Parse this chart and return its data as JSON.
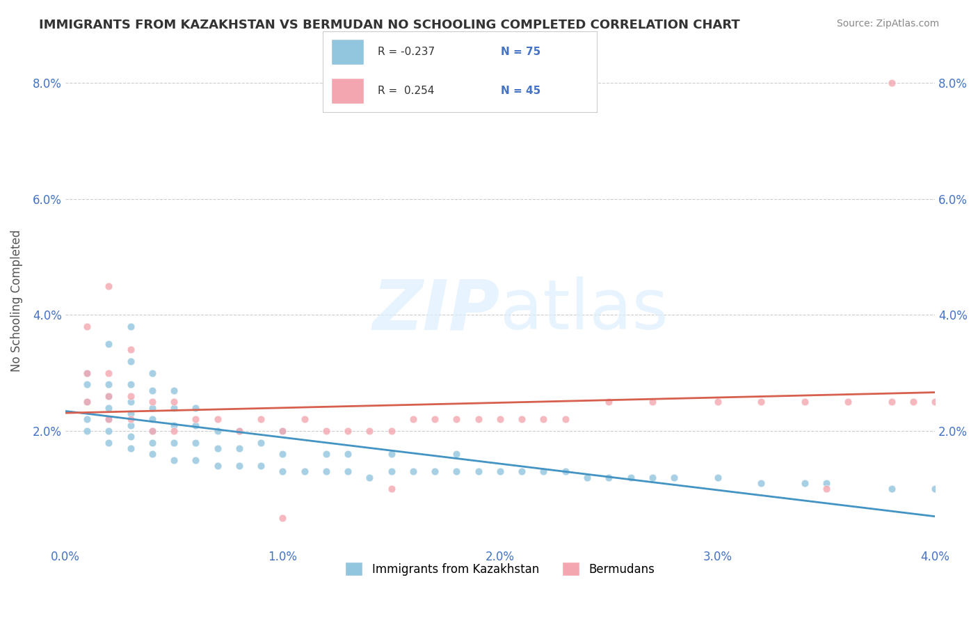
{
  "title": "IMMIGRANTS FROM KAZAKHSTAN VS BERMUDAN NO SCHOOLING COMPLETED CORRELATION CHART",
  "source": "Source: ZipAtlas.com",
  "xlabel": "",
  "ylabel": "No Schooling Completed",
  "legend_labels": [
    "Immigrants from Kazakhstan",
    "Bermudans"
  ],
  "r_kazakhstan": -0.237,
  "n_kazakhstan": 75,
  "r_bermudans": 0.254,
  "n_bermudans": 45,
  "blue_color": "#92C5DE",
  "pink_color": "#F4A6B0",
  "blue_line_color": "#4393C3",
  "pink_line_color": "#D6604D",
  "watermark": "ZIPatlas",
  "xlim": [
    0.0,
    0.04
  ],
  "ylim": [
    0.0,
    0.085
  ],
  "xtick_labels": [
    "0.0%",
    "1.0%",
    "2.0%",
    "3.0%",
    "4.0%"
  ],
  "ytick_labels": [
    "2.0%",
    "4.0%",
    "6.0%",
    "8.0%"
  ],
  "blue_scatter_x": [
    0.001,
    0.001,
    0.001,
    0.001,
    0.001,
    0.002,
    0.002,
    0.002,
    0.002,
    0.002,
    0.002,
    0.002,
    0.003,
    0.003,
    0.003,
    0.003,
    0.003,
    0.003,
    0.003,
    0.003,
    0.004,
    0.004,
    0.004,
    0.004,
    0.004,
    0.004,
    0.004,
    0.005,
    0.005,
    0.005,
    0.005,
    0.005,
    0.006,
    0.006,
    0.006,
    0.006,
    0.007,
    0.007,
    0.007,
    0.008,
    0.008,
    0.008,
    0.009,
    0.009,
    0.01,
    0.01,
    0.01,
    0.011,
    0.012,
    0.012,
    0.013,
    0.013,
    0.014,
    0.015,
    0.015,
    0.016,
    0.017,
    0.018,
    0.018,
    0.019,
    0.02,
    0.021,
    0.022,
    0.023,
    0.024,
    0.025,
    0.026,
    0.027,
    0.028,
    0.03,
    0.032,
    0.034,
    0.035,
    0.038,
    0.04
  ],
  "blue_scatter_y": [
    0.02,
    0.022,
    0.025,
    0.028,
    0.03,
    0.018,
    0.02,
    0.022,
    0.024,
    0.026,
    0.028,
    0.035,
    0.017,
    0.019,
    0.021,
    0.023,
    0.025,
    0.028,
    0.032,
    0.038,
    0.016,
    0.018,
    0.02,
    0.022,
    0.024,
    0.027,
    0.03,
    0.015,
    0.018,
    0.021,
    0.024,
    0.027,
    0.015,
    0.018,
    0.021,
    0.024,
    0.014,
    0.017,
    0.02,
    0.014,
    0.017,
    0.02,
    0.014,
    0.018,
    0.013,
    0.016,
    0.02,
    0.013,
    0.013,
    0.016,
    0.013,
    0.016,
    0.012,
    0.013,
    0.016,
    0.013,
    0.013,
    0.013,
    0.016,
    0.013,
    0.013,
    0.013,
    0.013,
    0.013,
    0.012,
    0.012,
    0.012,
    0.012,
    0.012,
    0.012,
    0.011,
    0.011,
    0.011,
    0.01,
    0.01
  ],
  "pink_scatter_x": [
    0.001,
    0.001,
    0.001,
    0.002,
    0.002,
    0.002,
    0.002,
    0.003,
    0.003,
    0.003,
    0.004,
    0.004,
    0.005,
    0.005,
    0.006,
    0.007,
    0.008,
    0.009,
    0.01,
    0.011,
    0.012,
    0.013,
    0.014,
    0.015,
    0.016,
    0.017,
    0.018,
    0.019,
    0.02,
    0.021,
    0.022,
    0.023,
    0.025,
    0.027,
    0.03,
    0.032,
    0.034,
    0.036,
    0.038,
    0.038,
    0.039,
    0.04,
    0.035,
    0.015,
    0.01
  ],
  "pink_scatter_y": [
    0.025,
    0.03,
    0.038,
    0.022,
    0.026,
    0.03,
    0.045,
    0.022,
    0.026,
    0.034,
    0.02,
    0.025,
    0.02,
    0.025,
    0.022,
    0.022,
    0.02,
    0.022,
    0.02,
    0.022,
    0.02,
    0.02,
    0.02,
    0.02,
    0.022,
    0.022,
    0.022,
    0.022,
    0.022,
    0.022,
    0.022,
    0.022,
    0.025,
    0.025,
    0.025,
    0.025,
    0.025,
    0.025,
    0.025,
    0.08,
    0.025,
    0.025,
    0.01,
    0.01,
    0.005
  ]
}
